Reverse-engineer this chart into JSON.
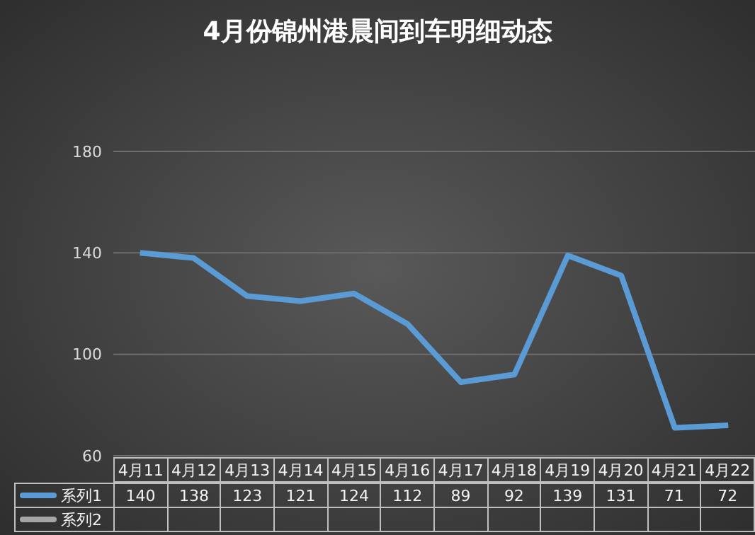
{
  "chart_data": {
    "type": "line",
    "title": "4月份锦州港晨间到车明细动态",
    "categories": [
      "4月11",
      "4月12",
      "4月13",
      "4月14",
      "4月15",
      "4月16",
      "4月17",
      "4月18",
      "4月19",
      "4月20",
      "4月21",
      "4月22"
    ],
    "series": [
      {
        "name": "系列1",
        "color": "#5b9bd5",
        "values": [
          140,
          138,
          123,
          121,
          124,
          112,
          89,
          92,
          139,
          131,
          71,
          72
        ]
      },
      {
        "name": "系列2",
        "color": "#a5a5a5",
        "values": [
          null,
          null,
          null,
          null,
          null,
          null,
          null,
          null,
          null,
          null,
          null,
          null
        ]
      }
    ],
    "ylim": [
      60,
      180
    ],
    "yticks": [
      60,
      100,
      140,
      180
    ],
    "grid": "y",
    "data_labels": true,
    "marker": "none"
  }
}
